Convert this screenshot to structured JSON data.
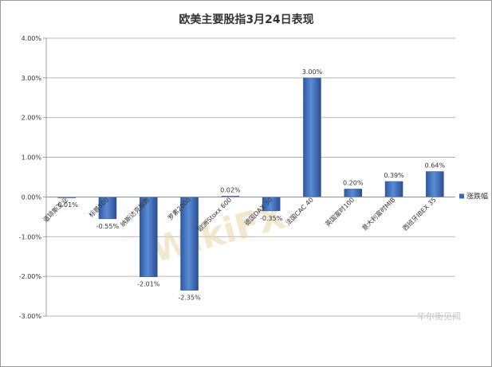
{
  "chart_data": {
    "type": "bar",
    "title": "欧美主要股指3月24日表现",
    "categories": [
      "道琼斯工业",
      "标普500",
      "纳斯达克指数",
      "罗素2000",
      "欧洲Stoxx 600",
      "德国DAX 30",
      "法国CAC 40",
      "英国富时100",
      "意大利富时MIB",
      "西班牙IBEX 35"
    ],
    "series": [
      {
        "name": "涨跌幅",
        "values": [
          -0.01,
          -0.55,
          -2.01,
          -2.35,
          0.02,
          -0.35,
          3.0,
          0.2,
          0.39,
          0.64
        ],
        "labels": [
          "-0.01%",
          "-0.55%",
          "-2.01%",
          "-2.35%",
          "0.02%",
          "-0.35%",
          "3.00%",
          "0.20%",
          "0.39%",
          "0.64%"
        ],
        "color": "#3a68b4"
      }
    ],
    "yticks": [
      {
        "value": 4,
        "label": "4.00%"
      },
      {
        "value": 3,
        "label": "3.00%"
      },
      {
        "value": 2,
        "label": "2.00%"
      },
      {
        "value": 1,
        "label": "1.00%"
      },
      {
        "value": 0,
        "label": "0.00%"
      },
      {
        "value": -1,
        "label": "-1.00%"
      },
      {
        "value": -2,
        "label": "-2.00%"
      },
      {
        "value": -3,
        "label": "-3.00%"
      }
    ],
    "ylim": [
      -3,
      4
    ],
    "grid": true,
    "legend": "right"
  },
  "watermarks": {
    "main": "WikiFX",
    "corner": "华尔街见闻"
  },
  "colors": {
    "bar": "#3a68b4",
    "grid": "#a0a0a0",
    "axis": "#8a8a8a"
  }
}
